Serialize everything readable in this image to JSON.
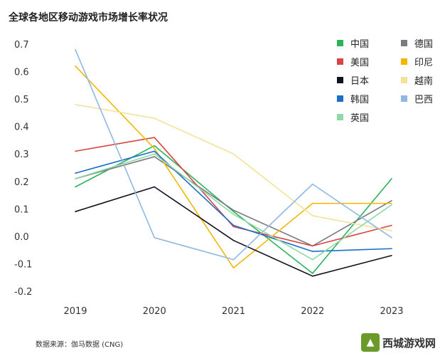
{
  "chart_data": {
    "type": "line",
    "title": "全球各地区移动游戏市场增长率状况",
    "x": [
      "2019",
      "2020",
      "2021",
      "2022",
      "2023"
    ],
    "ylim": [
      -0.2,
      0.7
    ],
    "yticks": [
      "0.7",
      "0.6",
      "0.5",
      "0.4",
      "0.3",
      "0.2",
      "0.1",
      "0.0",
      "-0.1",
      "-0.2"
    ],
    "ytick_values": [
      0.7,
      0.6,
      0.5,
      0.4,
      0.3,
      0.2,
      0.1,
      0.0,
      -0.1,
      -0.2
    ],
    "grid": false,
    "legend_position": "top-right",
    "series": [
      {
        "name": "中国",
        "color": "#2bb35a",
        "values": [
          0.18,
          0.33,
          0.09,
          -0.135,
          0.21
        ]
      },
      {
        "name": "德国",
        "color": "#7a7a80",
        "values": [
          0.21,
          0.29,
          0.095,
          -0.035,
          0.13
        ]
      },
      {
        "name": "美国",
        "color": "#d94444",
        "values": [
          0.31,
          0.36,
          0.035,
          -0.035,
          0.04
        ]
      },
      {
        "name": "印尼",
        "color": "#f2b705",
        "values": [
          0.62,
          0.32,
          -0.115,
          0.12,
          0.12
        ]
      },
      {
        "name": "日本",
        "color": "#111122",
        "values": [
          0.09,
          0.18,
          -0.015,
          -0.145,
          -0.07
        ]
      },
      {
        "name": "越南",
        "color": "#f3e39a",
        "values": [
          0.48,
          0.43,
          0.3,
          0.075,
          0.02
        ]
      },
      {
        "name": "韩国",
        "color": "#1a6fc9",
        "values": [
          0.23,
          0.31,
          0.04,
          -0.055,
          -0.045
        ]
      },
      {
        "name": "巴西",
        "color": "#90b8e0",
        "values": [
          0.68,
          -0.005,
          -0.085,
          0.19,
          -0.005
        ]
      },
      {
        "name": "英国",
        "color": "#8fd9a8",
        "values": [
          0.21,
          0.3,
          0.08,
          -0.085,
          0.115
        ]
      }
    ]
  },
  "source": "数据来源：伽马数据 (CNG)",
  "watermark": "西城游戏网"
}
